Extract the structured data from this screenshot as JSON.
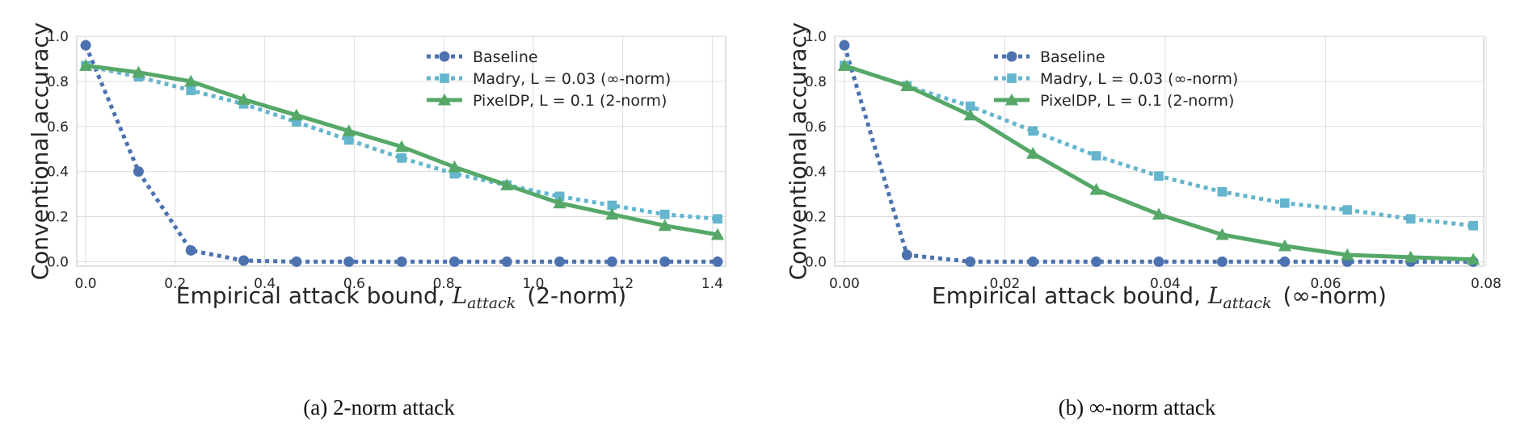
{
  "chart_data": [
    {
      "type": "line",
      "xlabel": "Empirical attack bound, ",
      "xlabel_math": "L",
      "xlabel_sub": "attack",
      "xlabel_suffix": "(2-norm)",
      "ylabel": "Conventional accuracy",
      "xlim": [
        -0.02,
        1.43
      ],
      "ylim": [
        -0.02,
        1.0
      ],
      "xticks": [
        0.0,
        0.2,
        0.4,
        0.6,
        0.8,
        1.0,
        1.2,
        1.4
      ],
      "xtick_labels": [
        "0.0",
        "0.2",
        "0.4",
        "0.6",
        "0.8",
        "1.0",
        "1.2",
        "1.4"
      ],
      "yticks": [
        0.0,
        0.2,
        0.4,
        0.6,
        0.8,
        1.0
      ],
      "ytick_labels": [
        "0.0",
        "0.2",
        "0.4",
        "0.6",
        "0.8",
        "1.0"
      ],
      "grid": true,
      "legend_position": "top-right",
      "caption": "(a)  2-norm attack",
      "series": [
        {
          "name": "Baseline",
          "color": "#4c72b0",
          "style": "dotted",
          "marker": "circle",
          "x": [
            0.0,
            0.118,
            0.235,
            0.353,
            0.471,
            0.588,
            0.706,
            0.824,
            0.941,
            1.059,
            1.176,
            1.294,
            1.412
          ],
          "y": [
            0.96,
            0.4,
            0.05,
            0.005,
            0.0,
            0.0,
            0.0,
            0.0,
            0.0,
            0.0,
            0.0,
            0.0,
            0.0
          ]
        },
        {
          "name": "Madry, L = 0.03 (∞-norm)",
          "color": "#64b5cd",
          "style": "dotted",
          "marker": "square",
          "x": [
            0.0,
            0.118,
            0.235,
            0.353,
            0.471,
            0.588,
            0.706,
            0.824,
            0.941,
            1.059,
            1.176,
            1.294,
            1.412
          ],
          "y": [
            0.87,
            0.82,
            0.76,
            0.7,
            0.62,
            0.54,
            0.46,
            0.39,
            0.34,
            0.29,
            0.25,
            0.21,
            0.19
          ]
        },
        {
          "name": "PixelDP, L = 0.1 (2-norm)",
          "color": "#55a868",
          "style": "solid",
          "marker": "triangle",
          "x": [
            0.0,
            0.118,
            0.235,
            0.353,
            0.471,
            0.588,
            0.706,
            0.824,
            0.941,
            1.059,
            1.176,
            1.294,
            1.412
          ],
          "y": [
            0.87,
            0.84,
            0.8,
            0.72,
            0.65,
            0.58,
            0.51,
            0.42,
            0.34,
            0.26,
            0.21,
            0.16,
            0.12
          ]
        }
      ]
    },
    {
      "type": "line",
      "xlabel": "Empirical attack bound, ",
      "xlabel_math": "L",
      "xlabel_sub": "attack",
      "xlabel_suffix": "(∞-norm)",
      "ylabel": "Conventional accuracy",
      "xlim": [
        -0.0012,
        0.0797
      ],
      "ylim": [
        -0.02,
        1.0
      ],
      "xticks": [
        0.0,
        0.02,
        0.04,
        0.06,
        0.08
      ],
      "xtick_labels": [
        "0.00",
        "0.02",
        "0.04",
        "0.06",
        "0.08"
      ],
      "yticks": [
        0.0,
        0.2,
        0.4,
        0.6,
        0.8,
        1.0
      ],
      "ytick_labels": [
        "0.0",
        "0.2",
        "0.4",
        "0.6",
        "0.8",
        "1.0"
      ],
      "grid": true,
      "legend_position": "top-right",
      "caption": "(b)  ∞-norm attack",
      "series": [
        {
          "name": "Baseline",
          "color": "#4c72b0",
          "style": "dotted",
          "marker": "circle",
          "x": [
            0.0,
            0.0078,
            0.0157,
            0.0235,
            0.0314,
            0.0392,
            0.0471,
            0.0549,
            0.0627,
            0.0706,
            0.0784
          ],
          "y": [
            0.96,
            0.03,
            0.0,
            0.0,
            0.0,
            0.0,
            0.0,
            0.0,
            0.0,
            0.0,
            0.0
          ]
        },
        {
          "name": "Madry, L = 0.03 (∞-norm)",
          "color": "#64b5cd",
          "style": "dotted",
          "marker": "square",
          "x": [
            0.0,
            0.0078,
            0.0157,
            0.0235,
            0.0314,
            0.0392,
            0.0471,
            0.0549,
            0.0627,
            0.0706,
            0.0784
          ],
          "y": [
            0.87,
            0.78,
            0.69,
            0.58,
            0.47,
            0.38,
            0.31,
            0.26,
            0.23,
            0.19,
            0.16
          ]
        },
        {
          "name": "PixelDP, L = 0.1 (2-norm)",
          "color": "#55a868",
          "style": "solid",
          "marker": "triangle",
          "x": [
            0.0,
            0.0078,
            0.0157,
            0.0235,
            0.0314,
            0.0392,
            0.0471,
            0.0549,
            0.0627,
            0.0706,
            0.0784
          ],
          "y": [
            0.87,
            0.78,
            0.65,
            0.48,
            0.32,
            0.21,
            0.12,
            0.07,
            0.03,
            0.02,
            0.01
          ]
        }
      ]
    }
  ]
}
